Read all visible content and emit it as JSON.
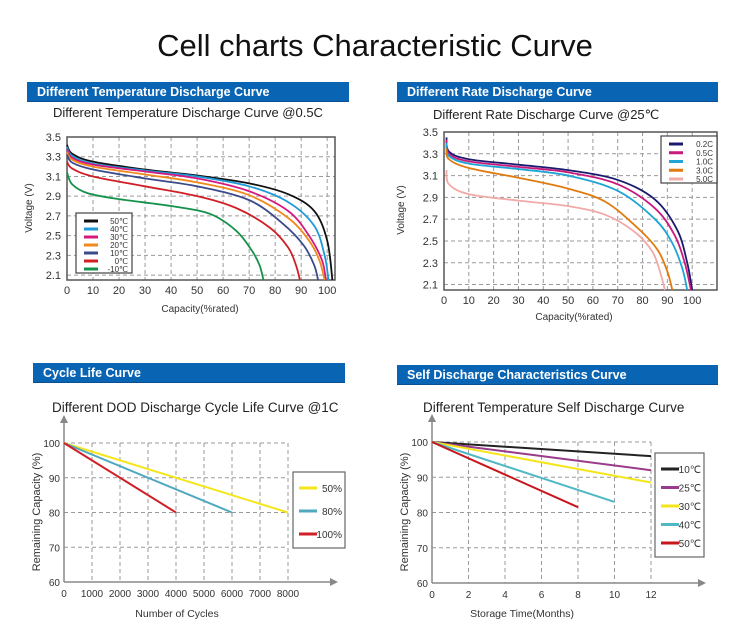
{
  "page": {
    "title": "Cell charts Characteristic Curve"
  },
  "panels": [
    {
      "banner": "Different Temperature Discharge Curve"
    },
    {
      "banner": "Different Rate Discharge Curve"
    },
    {
      "banner": "Cycle Life Curve"
    },
    {
      "banner": "Self Discharge Characteristics Curve"
    }
  ],
  "chart_data": [
    {
      "type": "line",
      "title": "Different Temperature Discharge Curve @0.5C",
      "xlabel": "Capacity(%rated)",
      "ylabel": "Voltage (V)",
      "xlim": [
        0,
        103
      ],
      "ylim": [
        2.05,
        3.5
      ],
      "xticks": [
        0,
        10,
        20,
        30,
        40,
        50,
        60,
        70,
        80,
        90,
        100
      ],
      "yticks": [
        3.5,
        3.3,
        3.1,
        2.9,
        2.7,
        2.5,
        2.3,
        2.1
      ],
      "grid": true,
      "legend_position": "bottom-left",
      "series": [
        {
          "name": "50℃",
          "color": "#111111",
          "points": [
            [
              0,
              3.42
            ],
            [
              2,
              3.33
            ],
            [
              10,
              3.25
            ],
            [
              30,
              3.17
            ],
            [
              50,
              3.11
            ],
            [
              70,
              3.03
            ],
            [
              85,
              2.92
            ],
            [
              95,
              2.75
            ],
            [
              100,
              2.45
            ],
            [
              102,
              2.05
            ]
          ]
        },
        {
          "name": "40℃",
          "color": "#1e9ad8",
          "points": [
            [
              0,
              3.4
            ],
            [
              2,
              3.31
            ],
            [
              10,
              3.23
            ],
            [
              30,
              3.16
            ],
            [
              50,
              3.1
            ],
            [
              70,
              3.0
            ],
            [
              85,
              2.84
            ],
            [
              95,
              2.6
            ],
            [
              99,
              2.3
            ],
            [
              100.5,
              2.05
            ]
          ]
        },
        {
          "name": "30℃",
          "color": "#d6197f",
          "points": [
            [
              0,
              3.38
            ],
            [
              2,
              3.29
            ],
            [
              10,
              3.22
            ],
            [
              30,
              3.15
            ],
            [
              50,
              3.08
            ],
            [
              70,
              2.95
            ],
            [
              85,
              2.75
            ],
            [
              93,
              2.5
            ],
            [
              98,
              2.25
            ],
            [
              99.5,
              2.05
            ]
          ]
        },
        {
          "name": "20℃",
          "color": "#f08a1c",
          "points": [
            [
              0,
              3.35
            ],
            [
              2,
              3.27
            ],
            [
              10,
              3.2
            ],
            [
              30,
              3.12
            ],
            [
              50,
              3.04
            ],
            [
              70,
              2.91
            ],
            [
              85,
              2.68
            ],
            [
              93,
              2.45
            ],
            [
              97,
              2.25
            ],
            [
              99,
              2.05
            ]
          ]
        },
        {
          "name": "10℃",
          "color": "#3a4a8a",
          "points": [
            [
              0,
              3.32
            ],
            [
              2,
              3.24
            ],
            [
              10,
              3.17
            ],
            [
              30,
              3.08
            ],
            [
              50,
              3.0
            ],
            [
              70,
              2.86
            ],
            [
              83,
              2.62
            ],
            [
              91,
              2.4
            ],
            [
              95,
              2.2
            ],
            [
              96.5,
              2.05
            ]
          ]
        },
        {
          "name": "0℃",
          "color": "#d11f26",
          "points": [
            [
              0,
              3.25
            ],
            [
              2,
              3.18
            ],
            [
              10,
              3.1
            ],
            [
              30,
              3.0
            ],
            [
              50,
              2.9
            ],
            [
              65,
              2.78
            ],
            [
              78,
              2.58
            ],
            [
              85,
              2.38
            ],
            [
              88,
              2.2
            ],
            [
              89.5,
              2.05
            ]
          ]
        },
        {
          "name": "-10℃",
          "color": "#14924a",
          "points": [
            [
              0,
              3.14
            ],
            [
              2,
              3.02
            ],
            [
              8,
              2.93
            ],
            [
              20,
              2.87
            ],
            [
              40,
              2.8
            ],
            [
              55,
              2.72
            ],
            [
              65,
              2.55
            ],
            [
              71,
              2.35
            ],
            [
              74,
              2.2
            ],
            [
              75.5,
              2.05
            ]
          ]
        }
      ]
    },
    {
      "type": "line",
      "title": "Different Rate Discharge Curve @25℃",
      "xlabel": "Capacity(%rated)",
      "ylabel": "Voltage (V)",
      "xlim": [
        0,
        110
      ],
      "ylim": [
        2.05,
        3.5
      ],
      "xticks": [
        0,
        10,
        20,
        30,
        40,
        50,
        60,
        70,
        80,
        90,
        100
      ],
      "yticks": [
        3.5,
        3.3,
        3.1,
        2.9,
        2.7,
        2.5,
        2.3,
        2.1
      ],
      "grid": true,
      "legend_position": "top-right",
      "series": [
        {
          "name": "0.2C",
          "color": "#1a1a6e",
          "points": [
            [
              1,
              3.45
            ],
            [
              2,
              3.32
            ],
            [
              10,
              3.25
            ],
            [
              30,
              3.2
            ],
            [
              50,
              3.15
            ],
            [
              70,
              3.06
            ],
            [
              85,
              2.88
            ],
            [
              94,
              2.6
            ],
            [
              98,
              2.3
            ],
            [
              100,
              2.05
            ]
          ]
        },
        {
          "name": "0.5C",
          "color": "#c8197e",
          "points": [
            [
              1,
              3.43
            ],
            [
              2,
              3.3
            ],
            [
              10,
              3.23
            ],
            [
              30,
              3.18
            ],
            [
              50,
              3.13
            ],
            [
              70,
              3.02
            ],
            [
              85,
              2.8
            ],
            [
              93,
              2.55
            ],
            [
              97,
              2.3
            ],
            [
              99.5,
              2.05
            ]
          ]
        },
        {
          "name": "1.0C",
          "color": "#1ea5d6",
          "points": [
            [
              1,
              3.4
            ],
            [
              2,
              3.28
            ],
            [
              10,
              3.21
            ],
            [
              30,
              3.16
            ],
            [
              50,
              3.1
            ],
            [
              70,
              2.96
            ],
            [
              85,
              2.7
            ],
            [
              92,
              2.48
            ],
            [
              96,
              2.25
            ],
            [
              98,
              2.05
            ]
          ]
        },
        {
          "name": "3.0C",
          "color": "#e07b10",
          "points": [
            [
              1,
              3.35
            ],
            [
              2,
              3.25
            ],
            [
              10,
              3.17
            ],
            [
              30,
              3.08
            ],
            [
              50,
              2.98
            ],
            [
              65,
              2.86
            ],
            [
              78,
              2.62
            ],
            [
              86,
              2.42
            ],
            [
              90,
              2.22
            ],
            [
              92,
              2.05
            ]
          ]
        },
        {
          "name": "5.0C",
          "color": "#f2aaa8",
          "points": [
            [
              1,
              3.15
            ],
            [
              2,
              3.02
            ],
            [
              10,
              2.93
            ],
            [
              30,
              2.87
            ],
            [
              50,
              2.82
            ],
            [
              65,
              2.74
            ],
            [
              77,
              2.58
            ],
            [
              84,
              2.4
            ],
            [
              87,
              2.22
            ],
            [
              89,
              2.05
            ]
          ]
        }
      ]
    },
    {
      "type": "line",
      "title": "Different DOD Discharge Cycle Life Curve @1C",
      "xlabel": "Number of Cycles",
      "ylabel": "Remaining Capacity (%)",
      "xlim": [
        0,
        8000
      ],
      "ylim": [
        60,
        100
      ],
      "xticks": [
        0,
        1000,
        2000,
        3000,
        4000,
        5000,
        6000,
        7000,
        8000
      ],
      "yticks": [
        100,
        90,
        80,
        70,
        60
      ],
      "grid": true,
      "legend_position": "right",
      "series": [
        {
          "name": "50%",
          "color": "#f5e61a",
          "points": [
            [
              0,
              100
            ],
            [
              8000,
              80
            ]
          ]
        },
        {
          "name": "80%",
          "color": "#4fa8c0",
          "points": [
            [
              0,
              100
            ],
            [
              6000,
              80
            ]
          ]
        },
        {
          "name": "100%",
          "color": "#d11f26",
          "points": [
            [
              0,
              100
            ],
            [
              4000,
              80
            ]
          ]
        }
      ]
    },
    {
      "type": "line",
      "title": "Different Temperature Self Discharge Curve",
      "xlabel": "Storage Time(Months)",
      "ylabel": "Remaining Capacity (%)",
      "xlim": [
        0,
        12
      ],
      "ylim": [
        60,
        100
      ],
      "xticks": [
        0,
        2,
        4,
        6,
        8,
        10,
        12
      ],
      "yticks": [
        100,
        90,
        80,
        70,
        60
      ],
      "grid": true,
      "legend_position": "right",
      "series": [
        {
          "name": "10℃",
          "color": "#222222",
          "points": [
            [
              0,
              100
            ],
            [
              12,
              96
            ]
          ]
        },
        {
          "name": "25℃",
          "color": "#9a3a8a",
          "points": [
            [
              0,
              100
            ],
            [
              12,
              92
            ]
          ]
        },
        {
          "name": "30℃",
          "color": "#f5e61a",
          "points": [
            [
              0,
              100
            ],
            [
              12,
              88.5
            ]
          ]
        },
        {
          "name": "40℃",
          "color": "#4fb8c4",
          "points": [
            [
              0,
              100
            ],
            [
              10,
              83
            ]
          ]
        },
        {
          "name": "50℃",
          "color": "#c8161d",
          "points": [
            [
              0,
              100
            ],
            [
              8,
              81.5
            ]
          ]
        }
      ]
    }
  ]
}
